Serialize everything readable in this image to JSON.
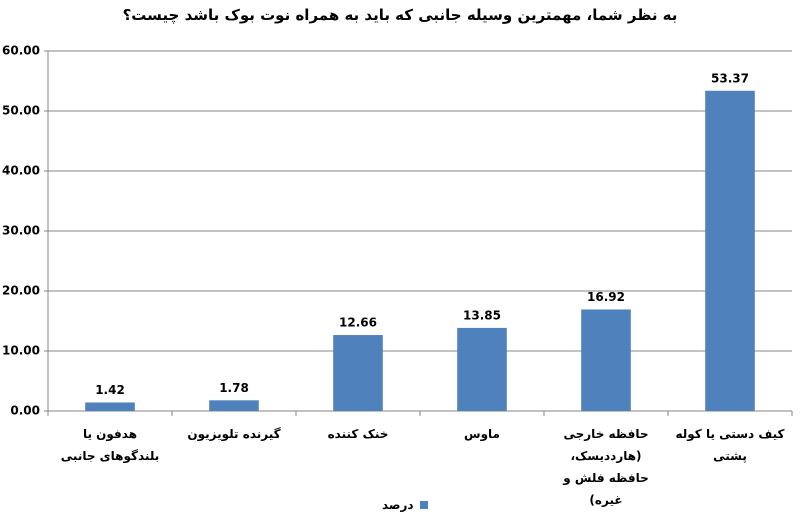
{
  "chart_data": {
    "type": "bar",
    "title": "به نظر شما، مهمترین وسیله جانبی که باید به همراه نوت بوک باشد چیست؟",
    "categories": [
      "هدفون یا بلندگوهای جانبی",
      "گیرنده تلویزیون",
      "خنک کننده",
      "ماوس",
      "حافظه خارجی (هارددیسک، حافظه فلش و غیره)",
      "کیف دستی یا کوله پشتی"
    ],
    "series": [
      {
        "name": "درصد",
        "color": "#4f81bd",
        "values": [
          1.42,
          1.78,
          12.66,
          13.85,
          16.92,
          53.37
        ]
      }
    ],
    "ylim": [
      0,
      60
    ],
    "yticks": [
      {
        "value": 0,
        "label": "0.00"
      },
      {
        "value": 10,
        "label": "10.00"
      },
      {
        "value": 20,
        "label": "20.00"
      },
      {
        "value": 30,
        "label": "30.00"
      },
      {
        "value": 40,
        "label": "40.00"
      },
      {
        "value": 50,
        "label": "50.00"
      },
      {
        "value": 60,
        "label": "60.00"
      }
    ],
    "grid": true
  }
}
